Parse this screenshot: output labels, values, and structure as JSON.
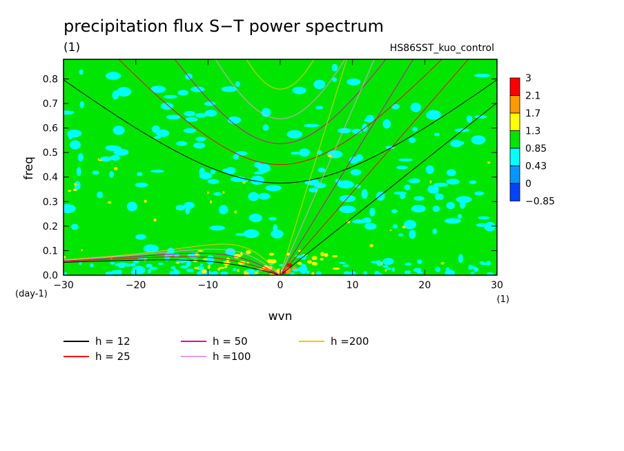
{
  "chart_data": {
    "type": "heatmap",
    "title": "precipitation flux S−T power spectrum",
    "title_unit": "(1)",
    "run_label": "HS86SST_kuo_control",
    "xlabel": "wvn",
    "ylabel": "freq",
    "x_unit": "(1)",
    "y_unit": "(day-1)",
    "xlim": [
      -30,
      30
    ],
    "ylim": [
      0.0,
      0.88
    ],
    "x_ticks": [
      -30,
      -20,
      -10,
      0,
      10,
      20,
      30
    ],
    "x_tick_labels": [
      "−30",
      "−20",
      "−10",
      "0",
      "10",
      "20",
      "30"
    ],
    "y_ticks": [
      0.0,
      0.1,
      0.2,
      0.3,
      0.4,
      0.5,
      0.6,
      0.7,
      0.8
    ],
    "y_tick_labels": [
      "0.0",
      "0.1",
      "0.2",
      "0.3",
      "0.4",
      "0.5",
      "0.6",
      "0.7",
      "0.8"
    ],
    "colorbar": {
      "levels": [
        "3",
        "2.1",
        "1.7",
        "1.3",
        "0.85",
        "0.43",
        "0",
        "−0.85"
      ],
      "colors": [
        "#ff0000",
        "#ff9900",
        "#ffff00",
        "#00e600",
        "#00ffff",
        "#0099ff",
        "#0044ff"
      ]
    },
    "field_colors": {
      "background": "#00e600",
      "cyan": "#00ffff",
      "yellow": "#ffff00",
      "orange": "#ff9900",
      "red": "#ff0000"
    },
    "dispersion_curves": [
      {
        "label": "h = 12",
        "h": 12,
        "color": "#000000"
      },
      {
        "label": "h = 25",
        "h": 25,
        "color": "#ff0000"
      },
      {
        "label": "h = 50",
        "h": 50,
        "color": "#e0009e"
      },
      {
        "label": "h =100",
        "h": 100,
        "color": "#e89ae0"
      },
      {
        "label": "h =200",
        "h": 200,
        "color": "#f0c800"
      }
    ]
  }
}
